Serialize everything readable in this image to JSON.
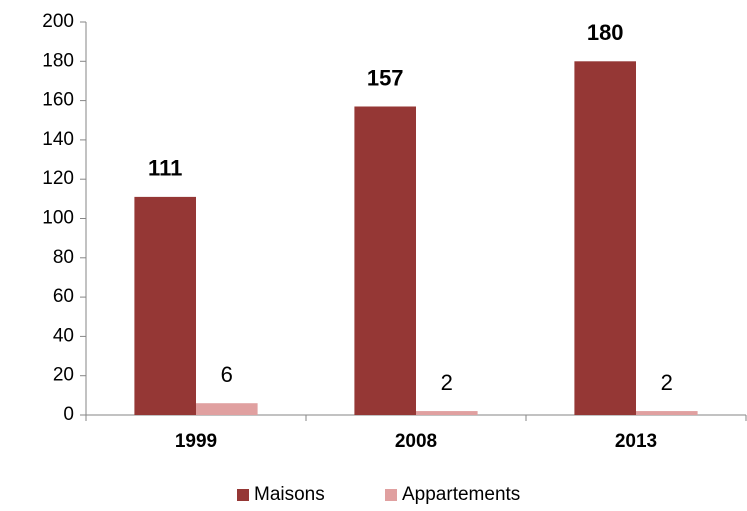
{
  "chart_data": {
    "type": "bar",
    "categories": [
      "1999",
      "2008",
      "2013"
    ],
    "series": [
      {
        "name": "Maisons",
        "color": "#953735",
        "values": [
          111,
          157,
          180
        ]
      },
      {
        "name": "Appartements",
        "color": "#e0a0a0",
        "values": [
          6,
          2,
          2
        ]
      }
    ],
    "ylim": [
      0,
      200
    ],
    "yticks": [
      0,
      20,
      40,
      60,
      80,
      100,
      120,
      140,
      160,
      180,
      200
    ],
    "grid": false,
    "legend": "bottom"
  }
}
